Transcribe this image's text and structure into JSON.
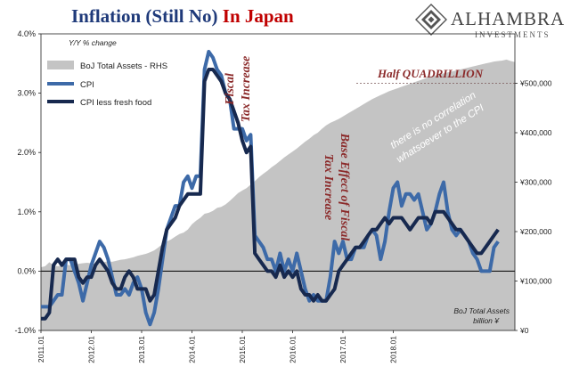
{
  "title": {
    "part1": "Inflation (Still No)",
    "part2": "In Japan"
  },
  "logo": {
    "name": "ALHAMBRA",
    "subtitle": "INVESTMENTS"
  },
  "colors": {
    "title_blue": "#1f3a7a",
    "title_red": "#c00000",
    "cpi": "#3d6aa8",
    "core": "#17294f",
    "assets": "#c4c4c4",
    "annotation": "#8b2a2a"
  },
  "chart_data": {
    "type": "line",
    "ylabel": "Y/Y % change",
    "y2label": [
      "BoJ Total Assets",
      "billion ¥"
    ],
    "ylim": [
      -1.0,
      4.0
    ],
    "y_ticks": [
      "-1.0%",
      "0.0%",
      "1.0%",
      "2.0%",
      "3.0%",
      "4.0%"
    ],
    "y2lim": [
      0,
      600000
    ],
    "y2_ticks": [
      "¥0",
      "¥100,000",
      "¥200,000",
      "¥300,000",
      "¥400,000",
      "¥500,000"
    ],
    "x_ticks": [
      "2011.01",
      "2012.01",
      "2013.01",
      "2014.01",
      "2015.01",
      "2016.01",
      "2017.01",
      "2018.01"
    ],
    "x_start": "2011-01",
    "legend": [
      "BoJ Total Assets - RHS",
      "CPI",
      "CPI less fresh food"
    ],
    "legend_position": "top-left",
    "series": [
      {
        "name": "BoJ Total Assets - RHS",
        "type": "area",
        "axis": "right",
        "values": [
          128000,
          130000,
          138000,
          132000,
          130000,
          131000,
          133000,
          132000,
          133000,
          135000,
          136000,
          137000,
          136000,
          135000,
          137000,
          138000,
          140000,
          139000,
          141000,
          143000,
          144000,
          146000,
          148000,
          151000,
          153000,
          155000,
          158000,
          162000,
          168000,
          175000,
          180000,
          184000,
          190000,
          195000,
          198000,
          204000,
          215000,
          222000,
          228000,
          236000,
          238000,
          242000,
          248000,
          250000,
          255000,
          262000,
          270000,
          278000,
          283000,
          288000,
          295000,
          302000,
          310000,
          317000,
          323000,
          330000,
          336000,
          343000,
          350000,
          356000,
          362000,
          368000,
          375000,
          382000,
          388000,
          395000,
          400000,
          408000,
          415000,
          420000,
          424000,
          428000,
          433000,
          438000,
          443000,
          448000,
          453000,
          458000,
          463000,
          468000,
          472000,
          476000,
          480000,
          484000,
          487000,
          490000,
          493000,
          496000,
          499000,
          502000,
          505000,
          508000,
          511000,
          514000,
          516000,
          518000,
          520000,
          522000,
          524000,
          526000,
          528000,
          530000,
          532000,
          534000,
          536000,
          538000,
          540000,
          542000,
          544000,
          545000,
          546000,
          548000,
          545000,
          543000
        ]
      },
      {
        "name": "CPI",
        "axis": "left",
        "values": [
          -0.6,
          -0.6,
          -0.6,
          -0.5,
          -0.4,
          -0.4,
          0.2,
          0.2,
          0.0,
          -0.2,
          -0.5,
          -0.2,
          0.1,
          0.3,
          0.5,
          0.4,
          0.2,
          -0.1,
          -0.4,
          -0.4,
          -0.3,
          -0.4,
          -0.2,
          -0.1,
          -0.3,
          -0.7,
          -0.9,
          -0.7,
          -0.3,
          0.2,
          0.7,
          0.9,
          1.1,
          1.1,
          1.5,
          1.6,
          1.4,
          1.6,
          1.6,
          3.4,
          3.7,
          3.6,
          3.4,
          3.3,
          3.0,
          2.9,
          2.4,
          2.4,
          2.4,
          2.2,
          2.3,
          0.6,
          0.5,
          0.4,
          0.2,
          0.2,
          0.0,
          0.3,
          0.0,
          0.2,
          -0.0,
          0.3,
          0.0,
          -0.3,
          -0.5,
          -0.4,
          -0.5,
          -0.5,
          -0.5,
          -0.1,
          0.5,
          0.3,
          0.5,
          0.2,
          0.2,
          0.4,
          0.4,
          0.4,
          0.6,
          0.7,
          0.6,
          0.2,
          0.5,
          1.0,
          1.4,
          1.5,
          1.1,
          1.3,
          1.3,
          1.2,
          1.3,
          1.0,
          0.7,
          0.8,
          1.0,
          1.3,
          1.5,
          1.0,
          0.7,
          0.6,
          0.7,
          0.6,
          0.5,
          0.3,
          0.2,
          0.0,
          -0.0,
          0.0,
          0.4,
          0.5
        ]
      },
      {
        "name": "CPI less fresh food",
        "axis": "left",
        "values": [
          -0.8,
          -0.8,
          -0.7,
          0.1,
          0.2,
          0.1,
          0.2,
          0.2,
          0.2,
          -0.1,
          -0.2,
          -0.1,
          -0.1,
          0.1,
          0.2,
          0.1,
          0.0,
          -0.2,
          -0.3,
          -0.3,
          -0.1,
          0.0,
          -0.1,
          -0.3,
          -0.3,
          -0.3,
          -0.5,
          -0.4,
          0.0,
          0.4,
          0.7,
          0.8,
          0.9,
          1.1,
          1.2,
          1.3,
          1.3,
          1.3,
          1.3,
          3.2,
          3.4,
          3.4,
          3.3,
          3.2,
          3.0,
          2.9,
          2.7,
          2.5,
          2.2,
          2.0,
          2.1,
          0.3,
          0.2,
          0.1,
          0.0,
          0.0,
          -0.1,
          0.1,
          -0.1,
          0.0,
          -0.1,
          -0.0,
          -0.3,
          -0.4,
          -0.4,
          -0.5,
          -0.4,
          -0.5,
          -0.5,
          -0.4,
          -0.3,
          0.0,
          0.1,
          0.2,
          0.3,
          0.4,
          0.4,
          0.5,
          0.6,
          0.7,
          0.7,
          0.8,
          0.9,
          0.8,
          0.9,
          0.9,
          0.9,
          0.8,
          0.7,
          0.8,
          0.9,
          0.9,
          0.9,
          0.8,
          1.0,
          1.0,
          1.0,
          0.9,
          0.8,
          0.7,
          0.7,
          0.6,
          0.5,
          0.4,
          0.3,
          0.3,
          0.4,
          0.5,
          0.6,
          0.7
        ]
      }
    ],
    "annotations": [
      "Fiscal Tax Increase",
      "Base Effect of Fiscal Tax Increase",
      "Half QUADRILLION",
      "there is no correlation whatsoever to the CPI"
    ]
  }
}
